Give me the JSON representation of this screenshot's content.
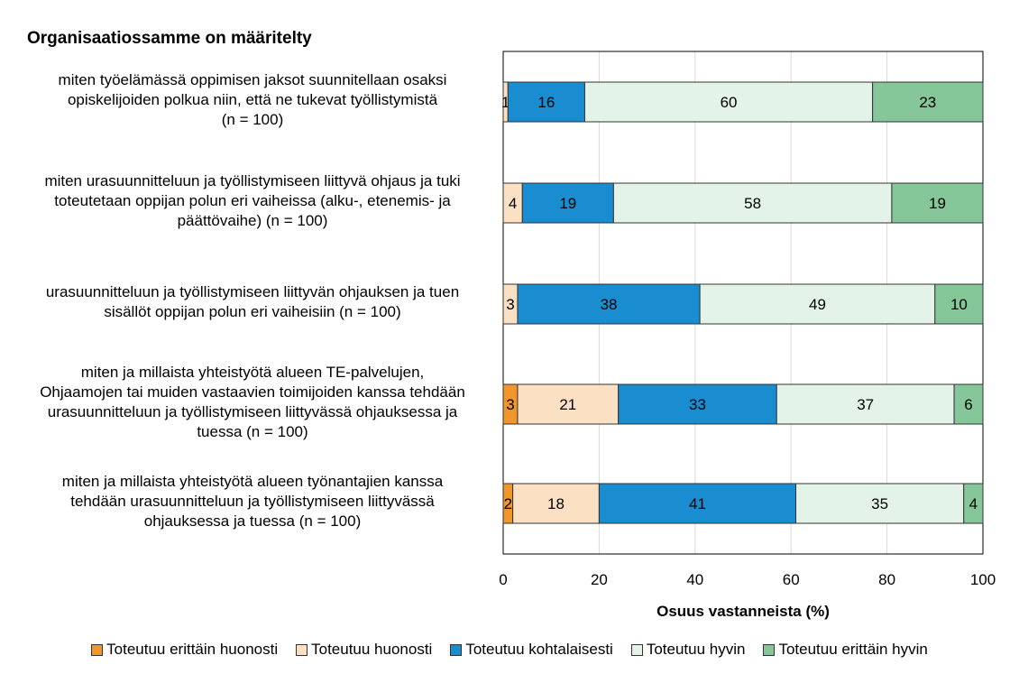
{
  "chart_data": {
    "type": "bar",
    "orientation": "horizontal",
    "stacked": true,
    "title": "Organisaatiossamme on määritelty",
    "xlabel": "Osuus vastanneista (%)",
    "ylabel": "",
    "xlim": [
      0,
      100
    ],
    "xticks": [
      "0",
      "20",
      "40",
      "60",
      "80",
      "100"
    ],
    "grid": true,
    "legend_position": "bottom",
    "categories": [
      "miten työelämässä oppimisen jaksot suunnitellaan osaksi opiskelijoiden polkua niin, että ne tukevat työllistymistä (n = 100)",
      "miten urasuunnitteluun ja työllistymiseen liittyvä ohjaus ja tuki toteutetaan oppijan polun eri vaiheissa (alku-, etenemis- ja päättövaihe) (n = 100)",
      "urasuunnitteluun ja työllistymiseen liittyvän ohjauksen ja tuen sisällöt oppijan polun eri vaiheisiin (n = 100)",
      "miten ja millaista yhteistyötä alueen TE-palvelujen, Ohjaamojen tai muiden vastaavien toimijoiden kanssa tehdään urasuunnitteluun ja työllistymiseen liittyvässä ohjauksessa ja tuessa (n = 100)",
      "miten ja millaista yhteistyötä alueen työnantajien kanssa tehdään urasuunnitteluun ja työllistymiseen liittyvässä ohjauksessa ja tuessa (n = 100)"
    ],
    "category_lines": [
      [
        "miten työelämässä oppimisen jaksot suunnitellaan osaksi",
        "opiskelijoiden polkua niin, että ne tukevat työllistymistä",
        "(n = 100)"
      ],
      [
        "miten urasuunnitteluun ja työllistymiseen liittyvä ohjaus ja tuki",
        "toteutetaan oppijan polun eri vaiheissa (alku-, etenemis- ja",
        "päättövaihe) (n = 100)"
      ],
      [
        "urasuunnitteluun ja työllistymiseen liittyvän ohjauksen ja tuen",
        "sisällöt oppijan polun eri vaiheisiin (n = 100)"
      ],
      [
        "miten ja millaista yhteistyötä alueen TE-palvelujen,",
        "Ohjaamojen tai muiden vastaavien toimijoiden kanssa tehdään",
        "urasuunnitteluun ja työllistymiseen liittyvässä ohjauksessa ja",
        "tuessa (n = 100)"
      ],
      [
        "miten ja millaista yhteistyötä alueen työnantajien kanssa",
        "tehdään urasuunnitteluun ja työllistymiseen liittyvässä",
        "ohjauksessa ja tuessa (n = 100)"
      ]
    ],
    "series": [
      {
        "name": "Toteutuu erittäin huonosti",
        "color": "#f0962d",
        "values": [
          0,
          0,
          0,
          3,
          2
        ],
        "labels": [
          "",
          "",
          "",
          "3",
          "2"
        ]
      },
      {
        "name": "Toteutuu huonosti",
        "color": "#fbe0c4",
        "values": [
          1,
          4,
          3,
          21,
          18
        ],
        "labels": [
          "1",
          "4",
          "3",
          "21",
          "18"
        ]
      },
      {
        "name": "Toteutuu kohtalaisesti",
        "color": "#1a8dd1",
        "values": [
          16,
          19,
          38,
          33,
          41
        ],
        "labels": [
          "16",
          "19",
          "38",
          "33",
          "41"
        ]
      },
      {
        "name": "Toteutuu hyvin",
        "color": "#e3f3e8",
        "values": [
          60,
          58,
          49,
          37,
          35
        ],
        "labels": [
          "60",
          "58",
          "49",
          "37",
          "35"
        ]
      },
      {
        "name": "Toteutuu erittäin hyvin",
        "color": "#86c79a",
        "values": [
          23,
          19,
          10,
          6,
          4
        ],
        "labels": [
          "23",
          "19",
          "10",
          "6",
          "4"
        ]
      }
    ]
  }
}
